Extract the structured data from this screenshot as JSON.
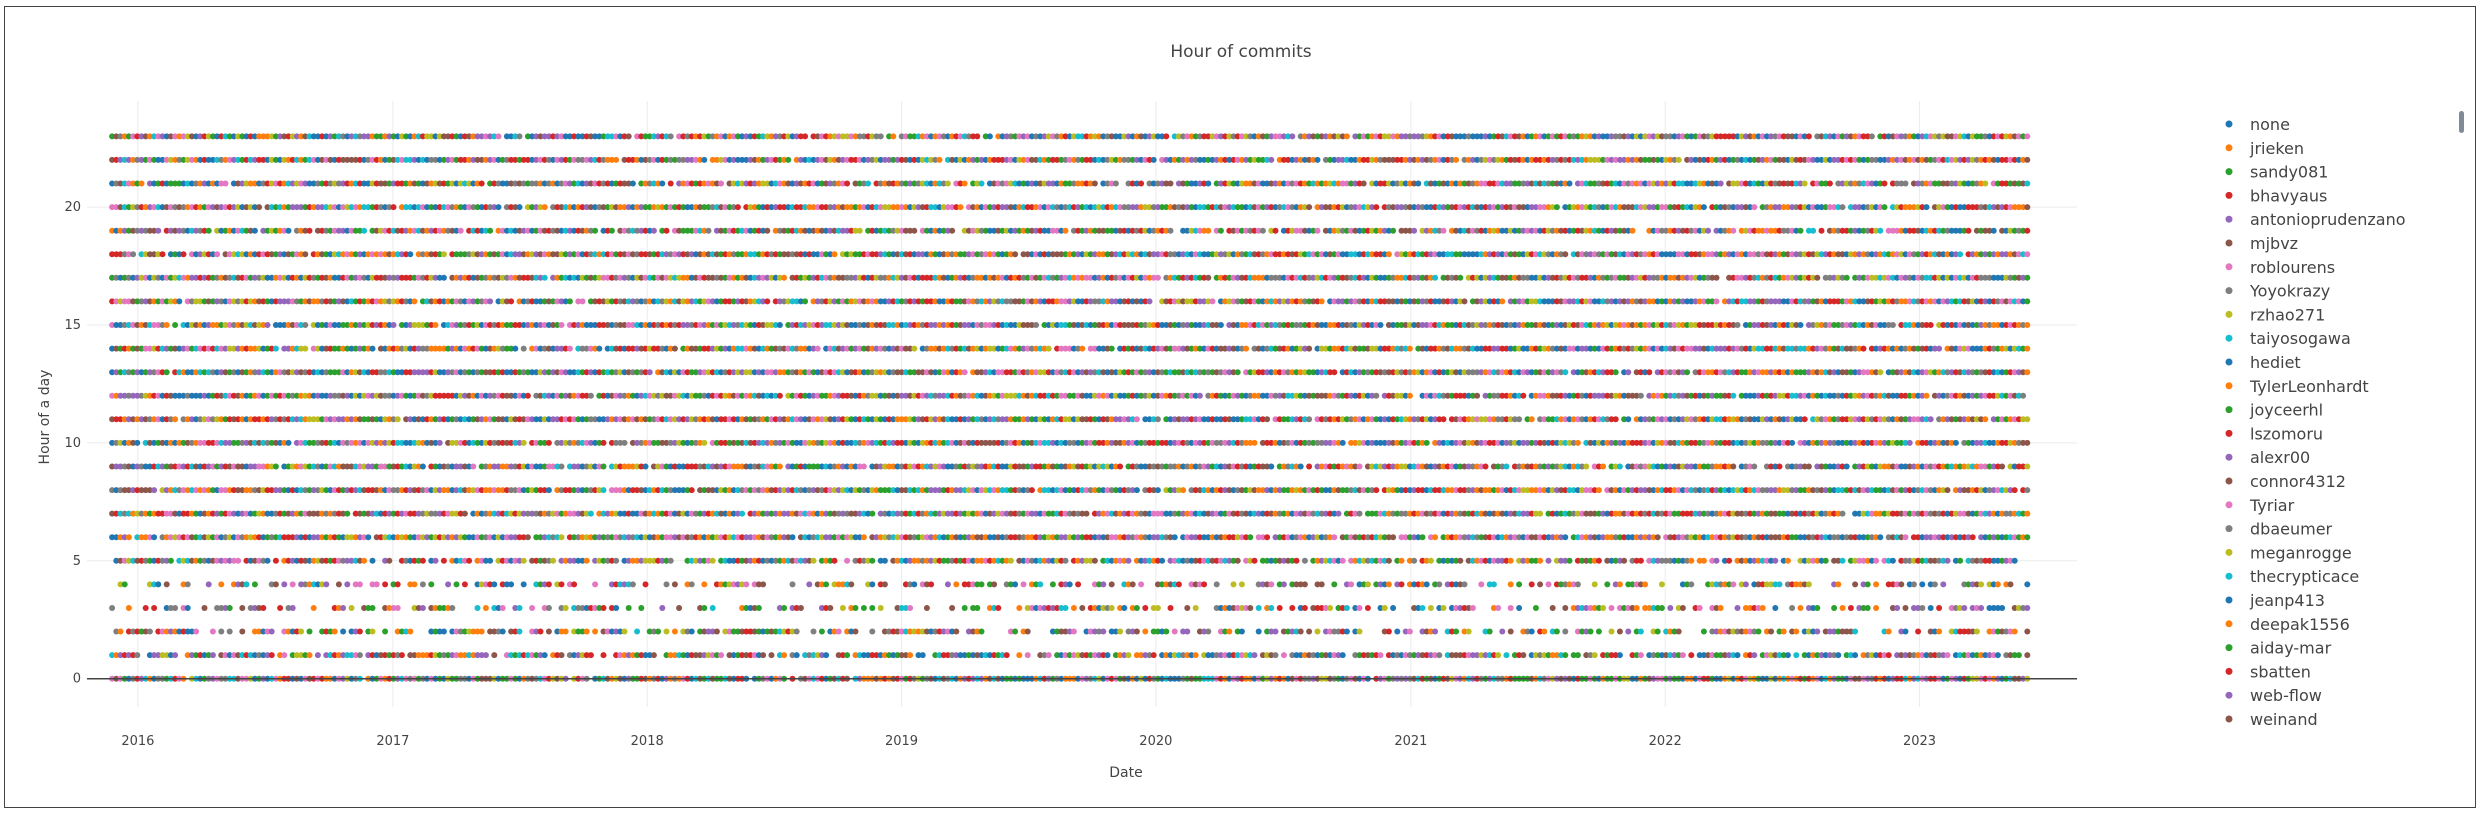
{
  "chart_data": {
    "type": "scatter",
    "title": "Hour of commits",
    "xlabel": "Date",
    "ylabel": "Hour of a day",
    "x_range": [
      "2015-10-20",
      "2023-08-15"
    ],
    "x_ticks": [
      "2016",
      "2017",
      "2018",
      "2019",
      "2020",
      "2021",
      "2022",
      "2023"
    ],
    "x_tick_dates": [
      "2016-01-01",
      "2017-01-01",
      "2018-01-01",
      "2019-01-01",
      "2020-01-01",
      "2021-01-01",
      "2022-01-01",
      "2023-01-01"
    ],
    "data_x_range": [
      "2015-11-25",
      "2023-06-10"
    ],
    "ylim": [
      -1.2,
      24.5
    ],
    "y_ticks": [
      0,
      5,
      10,
      15,
      20
    ],
    "y_values": [
      0,
      1,
      2,
      3,
      4,
      5,
      6,
      7,
      8,
      9,
      10,
      11,
      12,
      13,
      14,
      15,
      16,
      17,
      18,
      19,
      20,
      21,
      22,
      23
    ],
    "grid": true,
    "legend_position": "right",
    "series": [
      {
        "name": "none",
        "color": "#1f77b4"
      },
      {
        "name": "jrieken",
        "color": "#ff7f0e"
      },
      {
        "name": "sandy081",
        "color": "#2ca02c"
      },
      {
        "name": "bhavyaus",
        "color": "#d62728"
      },
      {
        "name": "antonioprudenzano",
        "color": "#9467bd"
      },
      {
        "name": "mjbvz",
        "color": "#8c564b"
      },
      {
        "name": "roblourens",
        "color": "#e377c2"
      },
      {
        "name": "Yoyokrazy",
        "color": "#7f7f7f"
      },
      {
        "name": "rzhao271",
        "color": "#bcbd22"
      },
      {
        "name": "taiyosogawa",
        "color": "#17becf"
      },
      {
        "name": "hediet",
        "color": "#1f77b4"
      },
      {
        "name": "TylerLeonhardt",
        "color": "#ff7f0e"
      },
      {
        "name": "joyceerhl",
        "color": "#2ca02c"
      },
      {
        "name": "lszomoru",
        "color": "#d62728"
      },
      {
        "name": "alexr00",
        "color": "#9467bd"
      },
      {
        "name": "connor4312",
        "color": "#8c564b"
      },
      {
        "name": "Tyriar",
        "color": "#e377c2"
      },
      {
        "name": "dbaeumer",
        "color": "#7f7f7f"
      },
      {
        "name": "meganrogge",
        "color": "#bcbd22"
      },
      {
        "name": "thecrypticace",
        "color": "#17becf"
      },
      {
        "name": "jeanp413",
        "color": "#1f77b4"
      },
      {
        "name": "deepak1556",
        "color": "#ff7f0e"
      },
      {
        "name": "aiday-mar",
        "color": "#2ca02c"
      },
      {
        "name": "sbatten",
        "color": "#d62728"
      },
      {
        "name": "web-flow",
        "color": "#9467bd"
      },
      {
        "name": "weinand",
        "color": "#8c564b"
      }
    ]
  }
}
